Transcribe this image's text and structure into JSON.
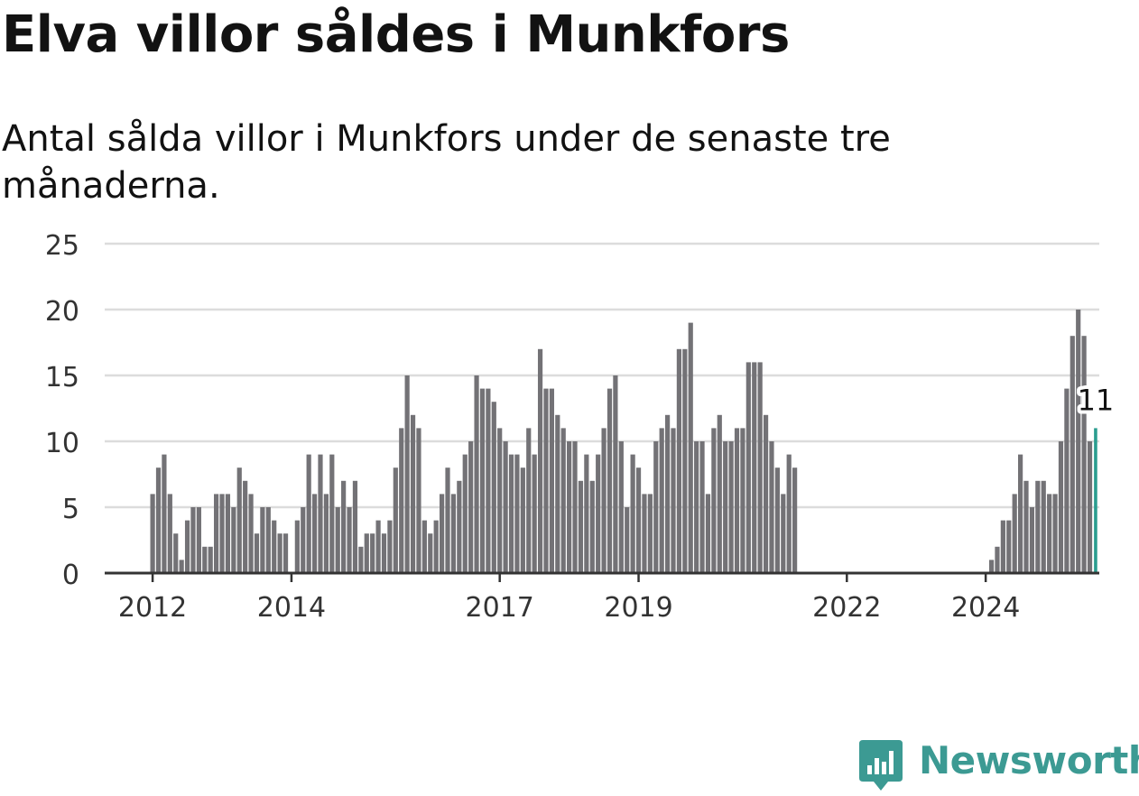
{
  "title": "Elva villor såldes i Munkfors",
  "subtitle": "Antal sålda villor i Munkfors under de senaste tre månaderna.",
  "brand": {
    "name": "Newsworthy",
    "icon": "newsworthy-logo-icon",
    "color": "#3c9a93"
  },
  "colors": {
    "bar": "#737276",
    "highlight": "#2a9d8f",
    "grid": "#dcdcdc",
    "axis": "#333333"
  },
  "chart_data": {
    "type": "bar",
    "title": "Elva villor såldes i Munkfors",
    "xlabel": "",
    "ylabel": "",
    "ylim": [
      0,
      25
    ],
    "yticks": [
      0,
      5,
      10,
      15,
      20,
      25
    ],
    "ytick_labels": [
      "0",
      "5",
      "10",
      "15",
      "20",
      "25"
    ],
    "xtick_labels": [
      "2012",
      "2014",
      "2017",
      "2019",
      "2022",
      "2024"
    ],
    "grid": true,
    "legend": "none",
    "series": [
      {
        "values": [
          6,
          8,
          9,
          6,
          3,
          1,
          4,
          5,
          5,
          2,
          2,
          6,
          6,
          6,
          5,
          8,
          7,
          6,
          3,
          5,
          5,
          4,
          3,
          3,
          0,
          4,
          5,
          9,
          6,
          9,
          6,
          9,
          5,
          7,
          5,
          7,
          2,
          3,
          3,
          4,
          3,
          4,
          8,
          11,
          15,
          12,
          11,
          4,
          3,
          4,
          6,
          8,
          6,
          7,
          9,
          10,
          15,
          14,
          14,
          13,
          11,
          10,
          9,
          9,
          8,
          11,
          9,
          17,
          14,
          14,
          12,
          11,
          10,
          10,
          7,
          9,
          7,
          9,
          11,
          14,
          15,
          10,
          5,
          9,
          8,
          6,
          6,
          10,
          11,
          12,
          11,
          17,
          17,
          19,
          10,
          10,
          6,
          11,
          12,
          10,
          10,
          11,
          11,
          16,
          16,
          16,
          12,
          10,
          8,
          6,
          9,
          8,
          0,
          0,
          0,
          0,
          0,
          0,
          0,
          0,
          0,
          0,
          0,
          0,
          0,
          0,
          0,
          0,
          0,
          0,
          0,
          0,
          0,
          0,
          0,
          0,
          0,
          0,
          0,
          0,
          0,
          0,
          0,
          0,
          0,
          1,
          2,
          4,
          4,
          6,
          9,
          7,
          5,
          7,
          7,
          6,
          6,
          10,
          14,
          18,
          20,
          18,
          10,
          11
        ]
      }
    ],
    "annotation": {
      "label": "11",
      "value": 11
    }
  }
}
